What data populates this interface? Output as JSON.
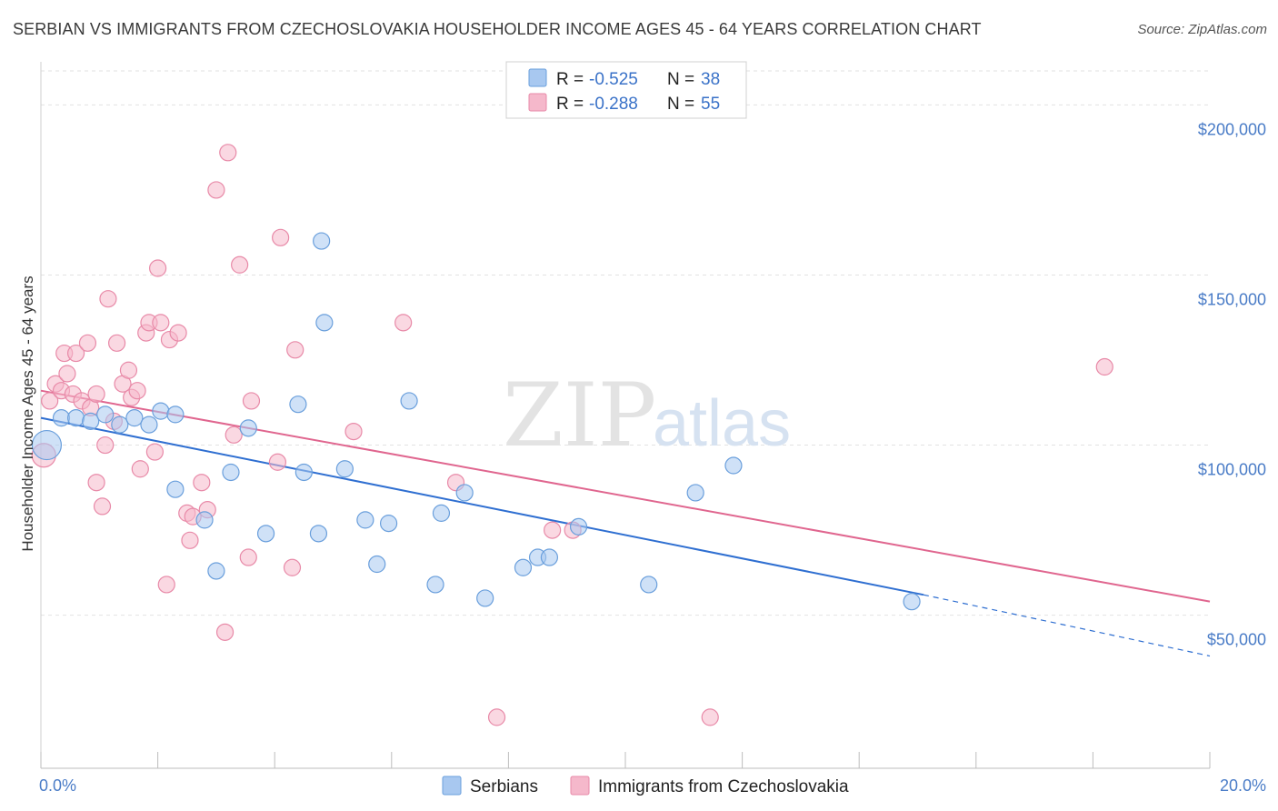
{
  "header": {
    "title": "SERBIAN VS IMMIGRANTS FROM CZECHOSLOVAKIA HOUSEHOLDER INCOME AGES 45 - 64 YEARS CORRELATION CHART",
    "source": "Source: ZipAtlas.com"
  },
  "watermark": {
    "zip": "ZIP",
    "atlas": "atlas"
  },
  "legend": {
    "rows": [
      {
        "r_label": "R = ",
        "r_value": "-0.525",
        "n_label": "N = ",
        "n_value": "38",
        "color": "#a8c8f0"
      },
      {
        "r_label": "R = ",
        "r_value": "-0.288",
        "n_label": "N = ",
        "n_value": "55",
        "color": "#f5b8cb"
      }
    ]
  },
  "bottom_legend": [
    {
      "label": "Serbians",
      "color": "#a8c8f0"
    },
    {
      "label": "Immigrants from Czechoslovakia",
      "color": "#f5b8cb"
    }
  ],
  "chart_data": {
    "type": "scatter",
    "title": "SERBIAN VS IMMIGRANTS FROM CZECHOSLOVAKIA HOUSEHOLDER INCOME AGES 45 - 64 YEARS CORRELATION CHART",
    "ylabel": "Householder Income Ages 45 - 64 years",
    "xlabel": "",
    "xlim": [
      0,
      20
    ],
    "ylim": [
      5000,
      210000
    ],
    "x_tick_labels": [
      "0.0%",
      "20.0%"
    ],
    "y_ticks": [
      {
        "value": 50000,
        "label": "$50,000"
      },
      {
        "value": 100000,
        "label": "$100,000"
      },
      {
        "value": 150000,
        "label": "$150,000"
      },
      {
        "value": 200000,
        "label": "$200,000"
      }
    ],
    "grid": true,
    "series": [
      {
        "name": "Serbians",
        "color": "#a8c8f0",
        "stroke": "#6a9fdc",
        "trend_color": "#2f6fd1",
        "trend": {
          "x0": 0.0,
          "y0": 108000,
          "x1": 15.1,
          "y1": 56000,
          "dash_to_x": 20.0,
          "dash_to_y": 38000
        },
        "points": [
          [
            0.1,
            100000,
            16
          ],
          [
            0.35,
            108000,
            9
          ],
          [
            0.6,
            108000,
            9
          ],
          [
            0.85,
            107000,
            9
          ],
          [
            1.1,
            109000,
            9
          ],
          [
            1.35,
            106000,
            9
          ],
          [
            1.6,
            108000,
            9
          ],
          [
            1.85,
            106000,
            9
          ],
          [
            2.05,
            110000,
            9
          ],
          [
            2.3,
            109000,
            9
          ],
          [
            2.3,
            87000,
            9
          ],
          [
            2.8,
            78000,
            9
          ],
          [
            3.0,
            63000,
            9
          ],
          [
            3.25,
            92000,
            9
          ],
          [
            3.55,
            105000,
            9
          ],
          [
            3.85,
            74000,
            9
          ],
          [
            4.4,
            112000,
            9
          ],
          [
            4.5,
            92000,
            9
          ],
          [
            4.75,
            74000,
            9
          ],
          [
            4.8,
            160000,
            9
          ],
          [
            4.85,
            136000,
            9
          ],
          [
            5.2,
            93000,
            9
          ],
          [
            5.55,
            78000,
            9
          ],
          [
            5.75,
            65000,
            9
          ],
          [
            5.95,
            77000,
            9
          ],
          [
            6.3,
            113000,
            9
          ],
          [
            6.75,
            59000,
            9
          ],
          [
            6.85,
            80000,
            9
          ],
          [
            7.25,
            86000,
            9
          ],
          [
            7.6,
            55000,
            9
          ],
          [
            8.25,
            64000,
            9
          ],
          [
            8.5,
            67000,
            9
          ],
          [
            8.7,
            67000,
            9
          ],
          [
            9.2,
            76000,
            9
          ],
          [
            10.4,
            59000,
            9
          ],
          [
            11.2,
            86000,
            9
          ],
          [
            11.85,
            94000,
            9
          ],
          [
            14.9,
            54000,
            9
          ]
        ]
      },
      {
        "name": "Immigrants from Czechoslovakia",
        "color": "#f5b8cb",
        "stroke": "#e88aa8",
        "trend_color": "#e0668f",
        "trend": {
          "x0": 0.0,
          "y0": 116000,
          "x1": 20.0,
          "y1": 54000
        },
        "points": [
          [
            0.05,
            97000,
            13
          ],
          [
            0.15,
            113000,
            9
          ],
          [
            0.25,
            118000,
            9
          ],
          [
            0.35,
            116000,
            9
          ],
          [
            0.4,
            127000,
            9
          ],
          [
            0.45,
            121000,
            9
          ],
          [
            0.55,
            115000,
            9
          ],
          [
            0.6,
            127000,
            9
          ],
          [
            0.7,
            113000,
            9
          ],
          [
            0.8,
            130000,
            9
          ],
          [
            0.85,
            111000,
            9
          ],
          [
            0.95,
            115000,
            9
          ],
          [
            0.95,
            89000,
            9
          ],
          [
            1.05,
            82000,
            9
          ],
          [
            1.1,
            100000,
            9
          ],
          [
            1.15,
            143000,
            9
          ],
          [
            1.25,
            107000,
            9
          ],
          [
            1.3,
            130000,
            9
          ],
          [
            1.4,
            118000,
            9
          ],
          [
            1.5,
            122000,
            9
          ],
          [
            1.55,
            114000,
            9
          ],
          [
            1.65,
            116000,
            9
          ],
          [
            1.7,
            93000,
            9
          ],
          [
            1.8,
            133000,
            9
          ],
          [
            1.85,
            136000,
            9
          ],
          [
            1.95,
            98000,
            9
          ],
          [
            2.0,
            152000,
            9
          ],
          [
            2.05,
            136000,
            9
          ],
          [
            2.15,
            59000,
            9
          ],
          [
            2.2,
            131000,
            9
          ],
          [
            2.35,
            133000,
            9
          ],
          [
            2.5,
            80000,
            9
          ],
          [
            2.55,
            72000,
            9
          ],
          [
            2.6,
            79000,
            9
          ],
          [
            2.75,
            89000,
            9
          ],
          [
            2.85,
            81000,
            9
          ],
          [
            3.0,
            175000,
            9
          ],
          [
            3.15,
            45000,
            9
          ],
          [
            3.2,
            186000,
            9
          ],
          [
            3.3,
            103000,
            9
          ],
          [
            3.4,
            153000,
            9
          ],
          [
            3.55,
            67000,
            9
          ],
          [
            3.6,
            113000,
            9
          ],
          [
            4.05,
            95000,
            9
          ],
          [
            4.1,
            161000,
            9
          ],
          [
            4.3,
            64000,
            9
          ],
          [
            4.35,
            128000,
            9
          ],
          [
            5.35,
            104000,
            9
          ],
          [
            6.2,
            136000,
            9
          ],
          [
            7.1,
            89000,
            9
          ],
          [
            7.8,
            20000,
            9
          ],
          [
            8.75,
            75000,
            9
          ],
          [
            9.1,
            75000,
            9
          ],
          [
            11.45,
            20000,
            9
          ],
          [
            18.2,
            123000,
            9
          ]
        ]
      }
    ]
  }
}
